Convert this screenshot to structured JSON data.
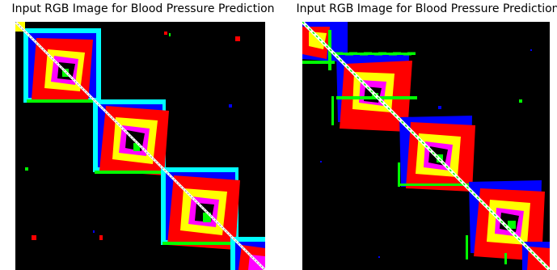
{
  "figure": {
    "panels": [
      {
        "title": "Input RGB Image for Blood Pressure Prediction",
        "colors": {
          "red": "#ff0000",
          "blue": "#0000ff",
          "cyan": "#00ffff",
          "yellow": "#ffff00",
          "green": "#00ff00",
          "magenta": "#ff00ff",
          "white": "#ffffff",
          "background": "#000000"
        }
      },
      {
        "title": "Input RGB Image for Blood Pressure Prediction",
        "colors": {
          "red": "#ff0000",
          "blue": "#0000ff",
          "cyan": "#00ffff",
          "yellow": "#ffff00",
          "green": "#00ff00",
          "magenta": "#ff00ff",
          "white": "#ffffff",
          "background": "#000000"
        }
      }
    ]
  }
}
